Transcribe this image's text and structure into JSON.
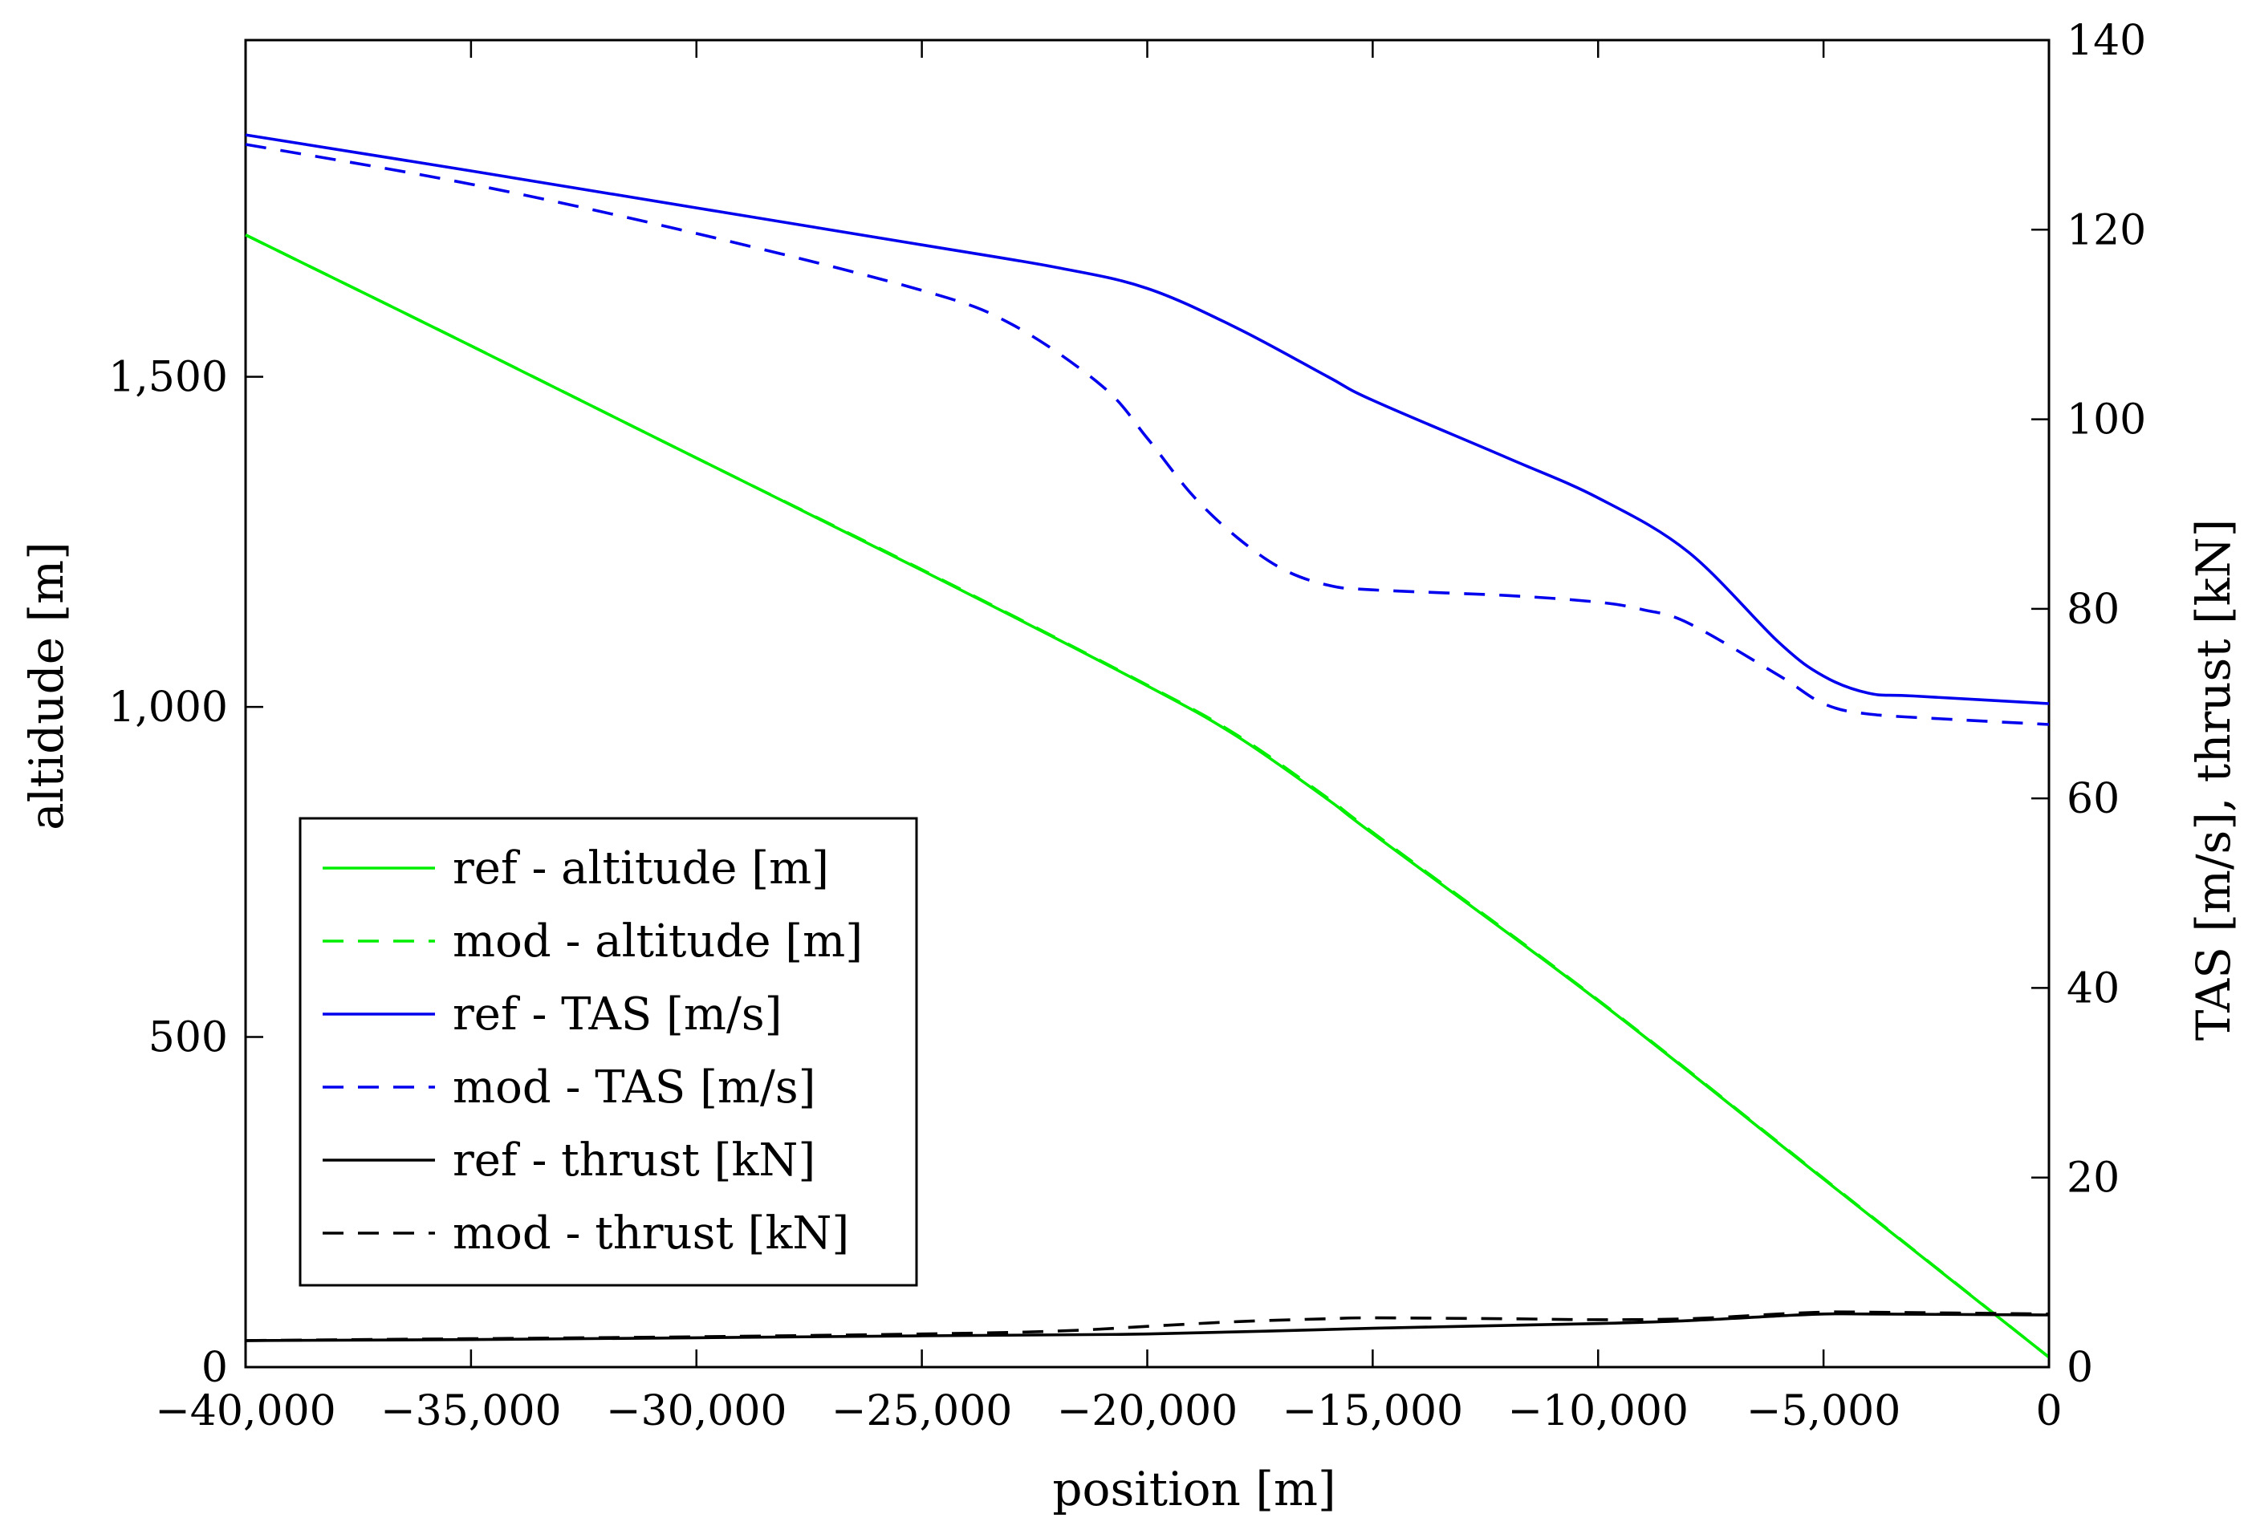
{
  "chart_data": {
    "type": "line",
    "title": "",
    "xlabel": "position [m]",
    "ylabel": "altidude [m]",
    "y2label": "TAS [m/s], thrust [kN]",
    "xlim": [
      -40000,
      0
    ],
    "ylim": [
      0,
      2010
    ],
    "y2lim": [
      0,
      140
    ],
    "xticks": [
      -40000,
      -35000,
      -30000,
      -25000,
      -20000,
      -15000,
      -10000,
      -5000,
      0
    ],
    "xtick_labels": [
      "−40,000",
      "−35,000",
      "−30,000",
      "−25,000",
      "−20,000",
      "−15,000",
      "−10,000",
      "−5,000",
      "0"
    ],
    "yticks": [
      0,
      500,
      1000,
      1500
    ],
    "ytick_labels": [
      "0",
      "500",
      "1,000",
      "1,500"
    ],
    "y2ticks": [
      0,
      20,
      40,
      60,
      80,
      100,
      120,
      140
    ],
    "y2tick_labels": [
      "0",
      "20",
      "40",
      "60",
      "80",
      "100",
      "120",
      "140"
    ],
    "grid": false,
    "legend_position": "lower-left",
    "series": [
      {
        "name": "ref - altitude [m]",
        "axis": "left",
        "color": "#00ee00",
        "dash": "solid",
        "x": [
          -40000,
          -35000,
          -30000,
          -25000,
          -20000,
          -18000,
          -16000,
          -15000,
          -10000,
          -5000,
          0
        ],
        "y": [
          1715,
          1547,
          1377,
          1207,
          1032,
          955,
          860,
          808,
          555,
          285,
          15
        ]
      },
      {
        "name": "mod - altitude [m]",
        "axis": "left",
        "color": "#00ee00",
        "dash": "dashed",
        "x": [
          -40000,
          -35000,
          -30000,
          -25000,
          -20000,
          -18000,
          -16000,
          -15000,
          -10000,
          -5000,
          0
        ],
        "y": [
          1715,
          1547,
          1377,
          1208,
          1033,
          957,
          862,
          810,
          556,
          286,
          15
        ]
      },
      {
        "name": "ref - TAS [m/s]",
        "axis": "right",
        "color": "#0000ee",
        "dash": "solid",
        "x": [
          -40000,
          -35000,
          -30000,
          -25000,
          -22000,
          -20000,
          -18000,
          -16000,
          -15000,
          -12000,
          -10000,
          -8000,
          -6000,
          -5000,
          -4000,
          -3000,
          0
        ],
        "y": [
          130.0,
          126.2,
          122.3,
          118.4,
          116.0,
          113.8,
          109.6,
          104.5,
          102.0,
          95.9,
          91.7,
          86.0,
          76.5,
          72.9,
          71.1,
          70.8,
          70.0
        ]
      },
      {
        "name": "mod - TAS [m/s]",
        "axis": "right",
        "color": "#0000ee",
        "dash": "dashed",
        "x": [
          -40000,
          -35000,
          -30000,
          -25000,
          -23000,
          -21000,
          -20000,
          -19000,
          -18000,
          -17000,
          -16000,
          -15000,
          -12000,
          -10000,
          -9000,
          -8000,
          -6000,
          -5000,
          -4000,
          -2000,
          0
        ],
        "y": [
          129.0,
          124.8,
          119.6,
          113.6,
          110.0,
          103.5,
          98.0,
          92.0,
          87.5,
          84.2,
          82.5,
          82.0,
          81.4,
          80.7,
          79.9,
          78.5,
          73.0,
          70.0,
          68.9,
          68.3,
          67.8
        ]
      },
      {
        "name": "ref - thrust [kN]",
        "axis": "right",
        "color": "#000000",
        "dash": "solid",
        "x": [
          -40000,
          -35000,
          -30000,
          -25000,
          -20000,
          -15000,
          -10000,
          -8000,
          -6000,
          -5000,
          -4000,
          0
        ],
        "y": [
          2.8,
          2.9,
          3.1,
          3.3,
          3.5,
          4.1,
          4.6,
          4.9,
          5.4,
          5.6,
          5.6,
          5.5
        ]
      },
      {
        "name": "mod - thrust [kN]",
        "axis": "right",
        "color": "#000000",
        "dash": "dashed",
        "x": [
          -40000,
          -35000,
          -30000,
          -25000,
          -22000,
          -20000,
          -18000,
          -16000,
          -15000,
          -12000,
          -10000,
          -8000,
          -6000,
          -5000,
          -4000,
          0
        ],
        "y": [
          2.8,
          3.0,
          3.2,
          3.5,
          3.8,
          4.3,
          4.8,
          5.1,
          5.2,
          5.1,
          5.0,
          5.1,
          5.6,
          5.8,
          5.8,
          5.6
        ]
      }
    ]
  }
}
